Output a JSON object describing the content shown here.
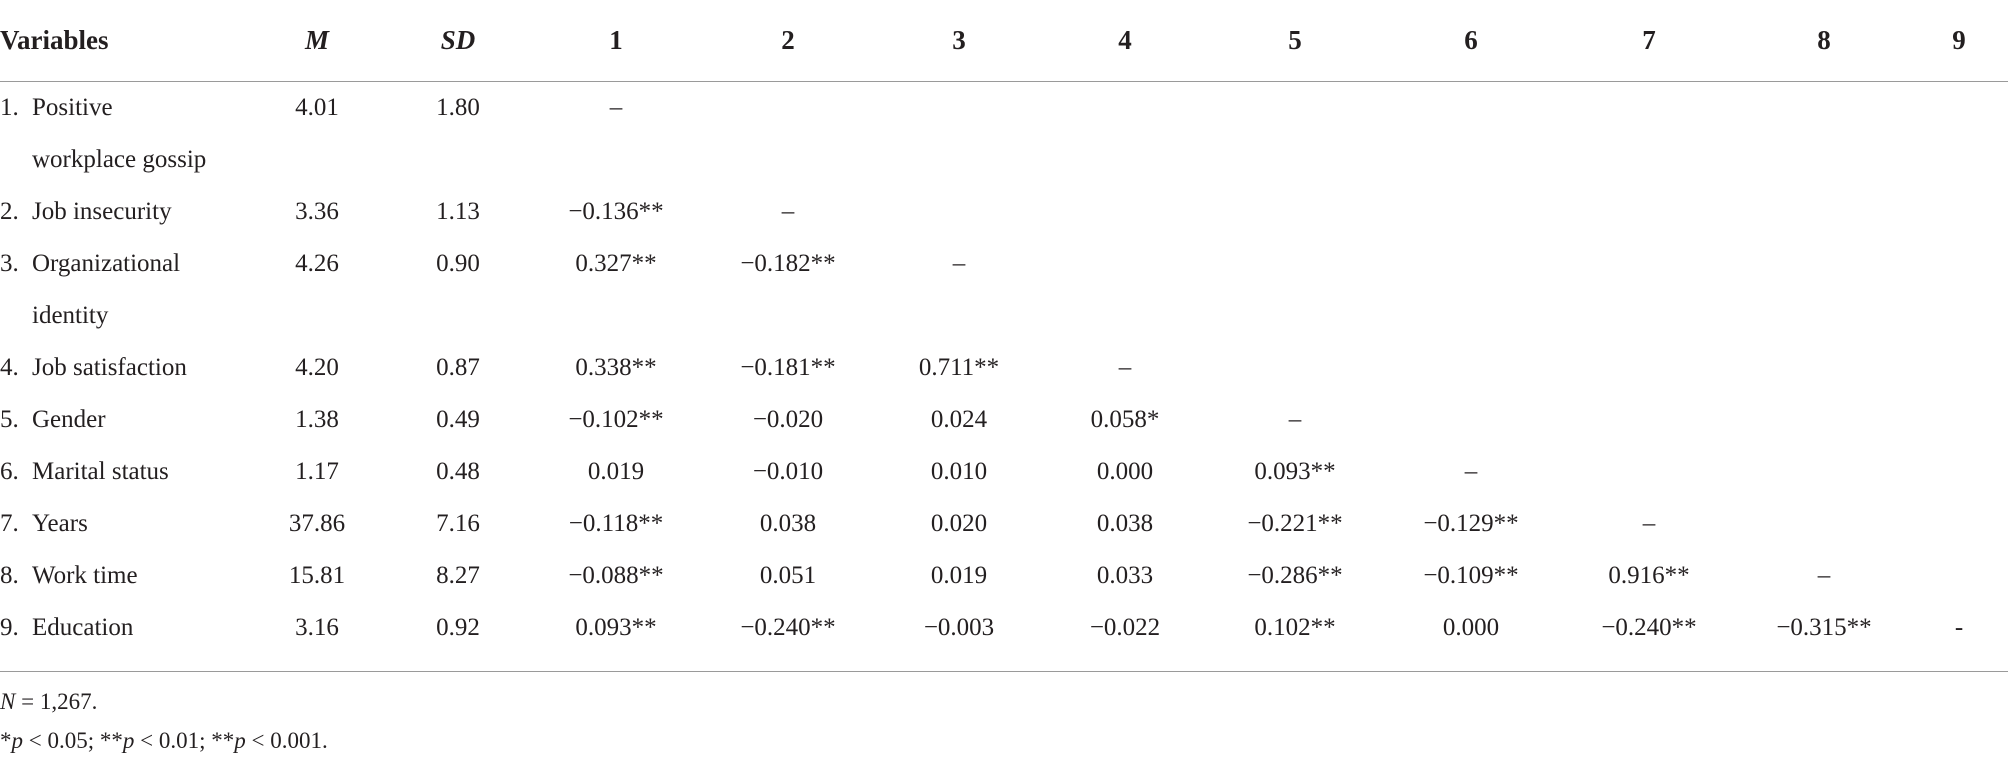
{
  "table": {
    "header": [
      "Variables",
      "M",
      "SD",
      "1",
      "2",
      "3",
      "4",
      "5",
      "6",
      "7",
      "8",
      "9"
    ],
    "italic_header": [
      false,
      true,
      true,
      false,
      false,
      false,
      false,
      false,
      false,
      false,
      false,
      false
    ],
    "rows": [
      {
        "num": "1.",
        "name": "Positive workplace gossip",
        "values": [
          "4.01",
          "1.80",
          "–"
        ]
      },
      {
        "num": "2.",
        "name": "Job insecurity",
        "values": [
          "3.36",
          "1.13",
          "−0.136**",
          "–"
        ]
      },
      {
        "num": "3.",
        "name": "Organizational identity",
        "values": [
          "4.26",
          "0.90",
          "0.327**",
          "−0.182**",
          "–"
        ]
      },
      {
        "num": "4.",
        "name": "Job satisfaction",
        "values": [
          "4.20",
          "0.87",
          "0.338**",
          "−0.181**",
          "0.711**",
          "–"
        ]
      },
      {
        "num": "5.",
        "name": "Gender",
        "values": [
          "1.38",
          "0.49",
          "−0.102**",
          "−0.020",
          "0.024",
          "0.058*",
          "–"
        ]
      },
      {
        "num": "6.",
        "name": "Marital status",
        "values": [
          "1.17",
          "0.48",
          "0.019",
          "−0.010",
          "0.010",
          "0.000",
          "0.093**",
          "–"
        ]
      },
      {
        "num": "7.",
        "name": "Years",
        "values": [
          "37.86",
          "7.16",
          "−0.118**",
          "0.038",
          "0.020",
          "0.038",
          "−0.221**",
          "−0.129**",
          "–"
        ]
      },
      {
        "num": "8.",
        "name": "Work time",
        "values": [
          "15.81",
          "8.27",
          "−0.088**",
          "0.051",
          "0.019",
          "0.033",
          "−0.286**",
          "−0.109**",
          "0.916**",
          "–"
        ]
      },
      {
        "num": "9.",
        "name": "Education",
        "values": [
          "3.16",
          "0.92",
          "0.093**",
          "−0.240**",
          "−0.003",
          "−0.022",
          "0.102**",
          "0.000",
          "−0.240**",
          "−0.315**",
          "-"
        ]
      }
    ],
    "notes": [
      [
        {
          "t": "N",
          "i": true
        },
        {
          "t": " = 1,267.",
          "i": false
        }
      ],
      [
        {
          "t": "*",
          "i": false
        },
        {
          "t": "p",
          "i": true
        },
        {
          "t": " < 0.05; **",
          "i": false
        },
        {
          "t": "p",
          "i": true
        },
        {
          "t": " < 0.01; **",
          "i": false
        },
        {
          "t": "p",
          "i": true
        },
        {
          "t": " < 0.001.",
          "i": false
        }
      ]
    ]
  }
}
